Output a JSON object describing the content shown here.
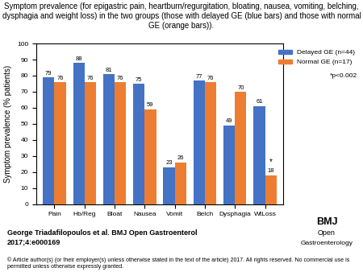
{
  "chart_data": {
    "type": "bar",
    "title": "Symptom prevalence (for epigastric pain, heartburn/regurgitation, bloating, nausea, vomiting, belching, dysphagia and weight loss) in the two groups (those with delayed GE (blue bars) and those with normal GE (orange bars)).",
    "y_label": "Symptom prevalence (% patients)",
    "categories": [
      "Pain",
      "Hb/Reg",
      "Bloat",
      "Nausea",
      "Vomit",
      "Belch",
      "Dysphagia",
      "WtLoss"
    ],
    "series": [
      {
        "name": "Delayed GE (n=44)",
        "color": "#4472C4",
        "values": [
          79,
          88,
          81,
          75,
          23,
          77,
          49,
          61
        ]
      },
      {
        "name": "Normal GE (n=17)",
        "color": "#ED7D31",
        "values": [
          76,
          76,
          76,
          59,
          26,
          76,
          70,
          18
        ]
      }
    ],
    "ylim": [
      0,
      100
    ],
    "yticks": [
      0,
      10,
      20,
      30,
      40,
      50,
      60,
      70,
      80,
      90,
      100
    ],
    "data_labels": true,
    "legend": "upper right",
    "grid": false,
    "annotations": [
      {
        "text": "*",
        "category": "WtLoss",
        "series": "Normal GE (n=17)"
      },
      {
        "text": "*p<0.002"
      }
    ],
    "source": [
      "George Triadafilopoulos et al. BMJ Open Gastroenterol",
      "2017;4:e000169"
    ],
    "copyright": "© Article author(s) (or their employer(s) unless otherwise stated in the text of the article) 2017. All rights reserved. No commercial use is permitted unless otherwise expressly granted.",
    "logo": [
      "BMJ",
      "Open",
      "Gastroenterology"
    ]
  }
}
